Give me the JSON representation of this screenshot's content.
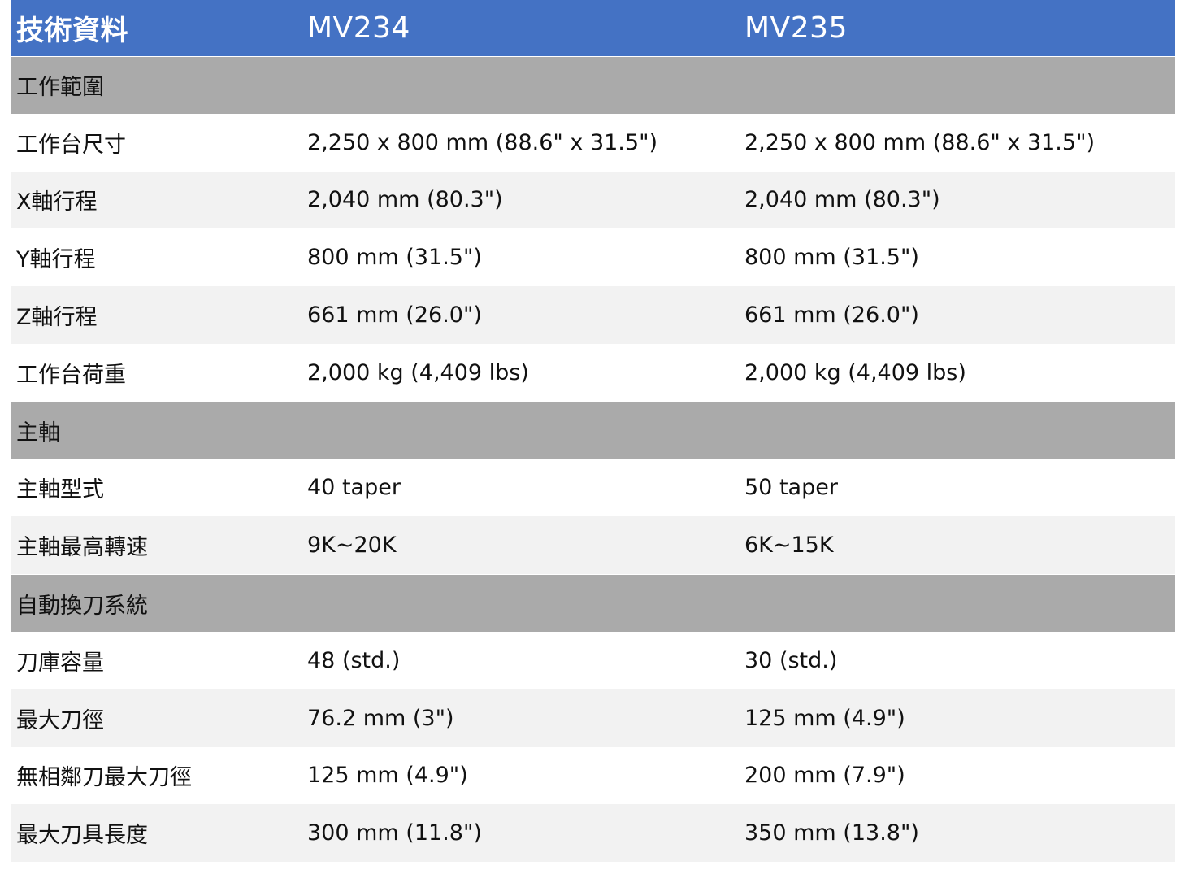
{
  "header": {
    "label": "技術資料",
    "model_a": "MV234",
    "model_b": "MV235"
  },
  "colors": {
    "header_bg": "#4472c4",
    "section_bg": "#aaaaaa",
    "stripe_bg": "#f2f2f2"
  },
  "sections": [
    {
      "title": "工作範圍",
      "rows": [
        {
          "label": "工作台尺寸",
          "a": "2,250 x 800 mm (88.6\" x 31.5\")",
          "b": "2,250 x 800 mm (88.6\" x 31.5\")"
        },
        {
          "label": "X軸行程",
          "a": "2,040 mm (80.3\")",
          "b": "2,040 mm (80.3\")"
        },
        {
          "label": "Y軸行程",
          "a": "800 mm (31.5\")",
          "b": "800 mm (31.5\")"
        },
        {
          "label": "Z軸行程",
          "a": "661 mm (26.0\")",
          "b": "661 mm (26.0\")"
        },
        {
          "label": "工作台荷重",
          "a": "2,000 kg (4,409 lbs)",
          "b": "2,000 kg (4,409 lbs)"
        }
      ]
    },
    {
      "title": "主軸",
      "rows": [
        {
          "label": "主軸型式",
          "a": "40 taper",
          "b": "50 taper"
        },
        {
          "label": "主軸最高轉速",
          "a": "9K~20K",
          "b": "6K~15K"
        }
      ]
    },
    {
      "title": "自動換刀系統",
      "rows": [
        {
          "label": "刀庫容量",
          "a": "48 (std.)",
          "b": "30 (std.)"
        },
        {
          "label": "最大刀徑",
          "a": "76.2 mm (3\")",
          "b": "125 mm (4.9\")"
        },
        {
          "label": "無相鄰刀最大刀徑",
          "a": "125 mm (4.9\")",
          "b": "200 mm (7.9\")"
        },
        {
          "label": "最大刀具長度",
          "a": "300 mm (11.8\")",
          "b": "350 mm (13.8\")"
        }
      ]
    }
  ]
}
